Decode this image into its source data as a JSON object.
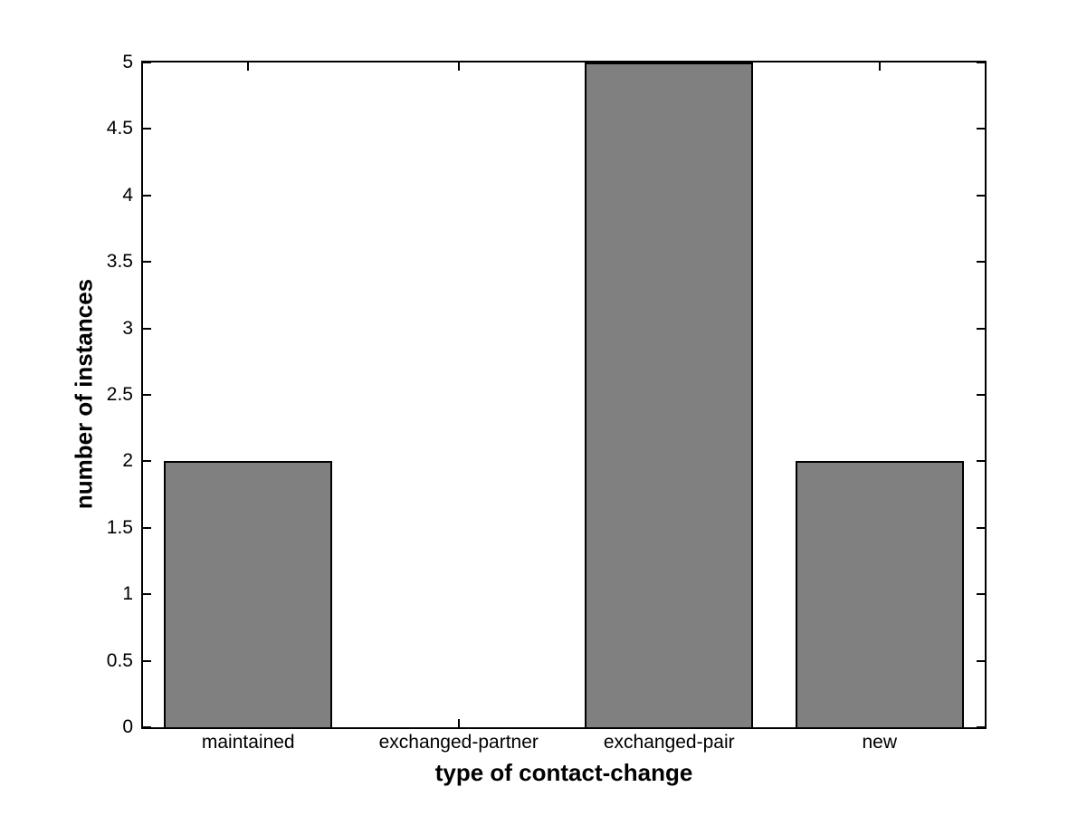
{
  "figure": {
    "background": "#ffffff"
  },
  "chart_data": {
    "type": "bar",
    "title": "",
    "categories": [
      "maintained",
      "exchanged-partner",
      "exchanged-pair",
      "new"
    ],
    "values": [
      2,
      0,
      5,
      2
    ],
    "xlabel": "type of contact-change",
    "ylabel": "number of instances",
    "ylim": [
      0,
      5
    ],
    "yticks": [
      0,
      0.5,
      1,
      1.5,
      2,
      2.5,
      3,
      3.5,
      4,
      4.5,
      5
    ],
    "ytick_labels": [
      "0",
      "0.5",
      "1",
      "1.5",
      "2",
      "2.5",
      "3",
      "3.5",
      "4",
      "4.5",
      "5"
    ],
    "grid": false,
    "legend": "none",
    "bar_color": "#808080",
    "bar_edge_color": "#000000",
    "axis_color": "#000000",
    "bar_width_fraction": 0.8
  }
}
